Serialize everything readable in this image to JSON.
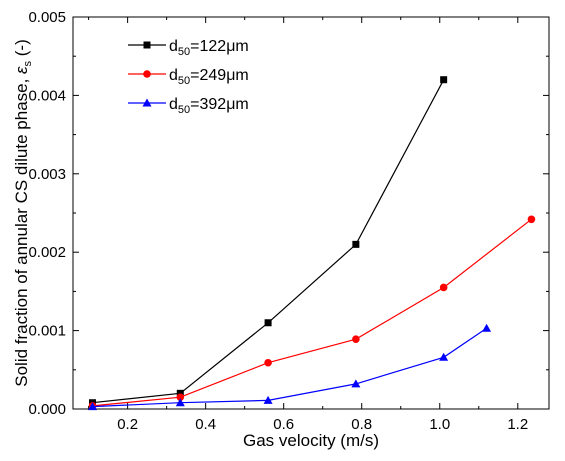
{
  "chart_data": {
    "type": "line",
    "title": "",
    "xlabel": "Gas velocity (m/s)",
    "ylabel_text": "Solid fraction of annular CS dilute phase, ",
    "ylabel_symbol": "ε",
    "ylabel_subscript": "s",
    "ylabel_unit": " (-)",
    "xlim": [
      0.06,
      1.28
    ],
    "ylim": [
      0,
      0.005
    ],
    "xticks": [
      0.2,
      0.4,
      0.6,
      0.8,
      1.0,
      1.2
    ],
    "xtick_labels": [
      "0.2",
      "0.4",
      "0.6",
      "0.8",
      "1.0",
      "1.2"
    ],
    "yticks": [
      0,
      0.001,
      0.002,
      0.003,
      0.004,
      0.005
    ],
    "ytick_labels": [
      "0.000",
      "0.001",
      "0.002",
      "0.003",
      "0.004",
      "0.005"
    ],
    "grid": false,
    "legend_position": "top-left",
    "series": [
      {
        "name_main": "d",
        "name_sub": "50",
        "name_rest": "=122μm",
        "color": "#000000",
        "marker": "square",
        "x": [
          0.11,
          0.335,
          0.56,
          0.785,
          1.01
        ],
        "y": [
          8e-05,
          0.0002,
          0.0011,
          0.0021,
          0.0042
        ]
      },
      {
        "name_main": "d",
        "name_sub": "50",
        "name_rest": "=249μm",
        "color": "#ff0000",
        "marker": "circle",
        "x": [
          0.11,
          0.335,
          0.56,
          0.785,
          1.01,
          1.235
        ],
        "y": [
          4e-05,
          0.00015,
          0.00059,
          0.00089,
          0.00155,
          0.00242
        ]
      },
      {
        "name_main": "d",
        "name_sub": "50",
        "name_rest": "=392μm",
        "color": "#0000ff",
        "marker": "triangle",
        "x": [
          0.11,
          0.335,
          0.56,
          0.785,
          1.01,
          1.12
        ],
        "y": [
          3e-05,
          8e-05,
          0.00011,
          0.00032,
          0.00066,
          0.00103
        ]
      }
    ]
  }
}
